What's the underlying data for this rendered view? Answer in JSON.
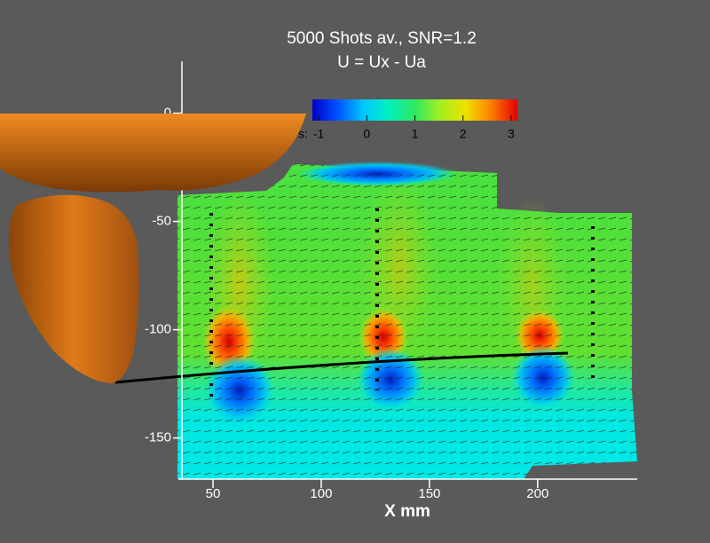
{
  "chart_data": {
    "type": "contour",
    "title": "5000 Shots av., SNR=1.2",
    "subtitle": "U = Ux - Ua",
    "xlabel": "X mm",
    "xlim": [
      34,
      246
    ],
    "xticks": [
      50,
      100,
      150,
      200
    ],
    "ylim": [
      -169,
      24
    ],
    "yticks": [
      0,
      -50,
      -100,
      -150
    ],
    "colorbar": {
      "label": "s:",
      "lim": [
        -1.13,
        3.13
      ],
      "ticks": [
        -1,
        0,
        1,
        2,
        3
      ]
    }
  }
}
